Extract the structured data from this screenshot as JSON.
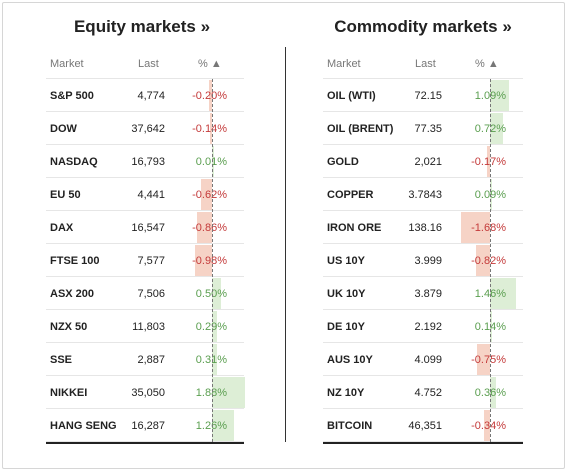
{
  "equity": {
    "title": "Equity markets »",
    "headers": {
      "market": "Market",
      "last": "Last",
      "pct": "% ▲"
    },
    "rows": [
      {
        "name": "S&P 500",
        "last": "4,774",
        "pct": "-0.20%",
        "value": -0.2
      },
      {
        "name": "DOW",
        "last": "37,642",
        "pct": "-0.14%",
        "value": -0.14
      },
      {
        "name": "NASDAQ",
        "last": "16,793",
        "pct": "0.01%",
        "value": 0.01
      },
      {
        "name": "EU 50",
        "last": "4,441",
        "pct": "-0.62%",
        "value": -0.62
      },
      {
        "name": "DAX",
        "last": "16,547",
        "pct": "-0.86%",
        "value": -0.86
      },
      {
        "name": "FTSE 100",
        "last": "7,577",
        "pct": "-0.98%",
        "value": -0.98
      },
      {
        "name": "ASX 200",
        "last": "7,506",
        "pct": "0.50%",
        "value": 0.5
      },
      {
        "name": "NZX 50",
        "last": "11,803",
        "pct": "0.29%",
        "value": 0.29
      },
      {
        "name": "SSE",
        "last": "2,887",
        "pct": "0.31%",
        "value": 0.31
      },
      {
        "name": "NIKKEI",
        "last": "35,050",
        "pct": "1.88%",
        "value": 1.88
      },
      {
        "name": "HANG SENG",
        "last": "16,287",
        "pct": "1.26%",
        "value": 1.26
      }
    ]
  },
  "commodity": {
    "title": "Commodity markets »",
    "headers": {
      "market": "Market",
      "last": "Last",
      "pct": "% ▲"
    },
    "rows": [
      {
        "name": "OIL (WTI)",
        "last": "72.15",
        "pct": "1.09%",
        "value": 1.09
      },
      {
        "name": "OIL (BRENT)",
        "last": "77.35",
        "pct": "0.72%",
        "value": 0.72
      },
      {
        "name": "GOLD",
        "last": "2,021",
        "pct": "-0.17%",
        "value": -0.17
      },
      {
        "name": "COPPER",
        "last": "3.7843",
        "pct": "0.09%",
        "value": 0.09
      },
      {
        "name": "IRON ORE",
        "last": "138.16",
        "pct": "-1.68%",
        "value": -1.68
      },
      {
        "name": "US 10Y",
        "last": "3.999",
        "pct": "-0.82%",
        "value": -0.82
      },
      {
        "name": "UK 10Y",
        "last": "3.879",
        "pct": "1.46%",
        "value": 1.46
      },
      {
        "name": "DE 10Y",
        "last": "2.192",
        "pct": "0.14%",
        "value": 0.14
      },
      {
        "name": "AUS 10Y",
        "last": "4.099",
        "pct": "-0.75%",
        "value": -0.75
      },
      {
        "name": "NZ 10Y",
        "last": "4.752",
        "pct": "0.36%",
        "value": 0.36
      },
      {
        "name": "BITCOIN",
        "last": "46,351",
        "pct": "-0.34%",
        "value": -0.34
      }
    ]
  },
  "colors": {
    "negative_text": "#c43a3a",
    "positive_text": "#5a9e4f",
    "negative_bar": "#f6d3c6",
    "positive_bar": "#ddeed6"
  }
}
